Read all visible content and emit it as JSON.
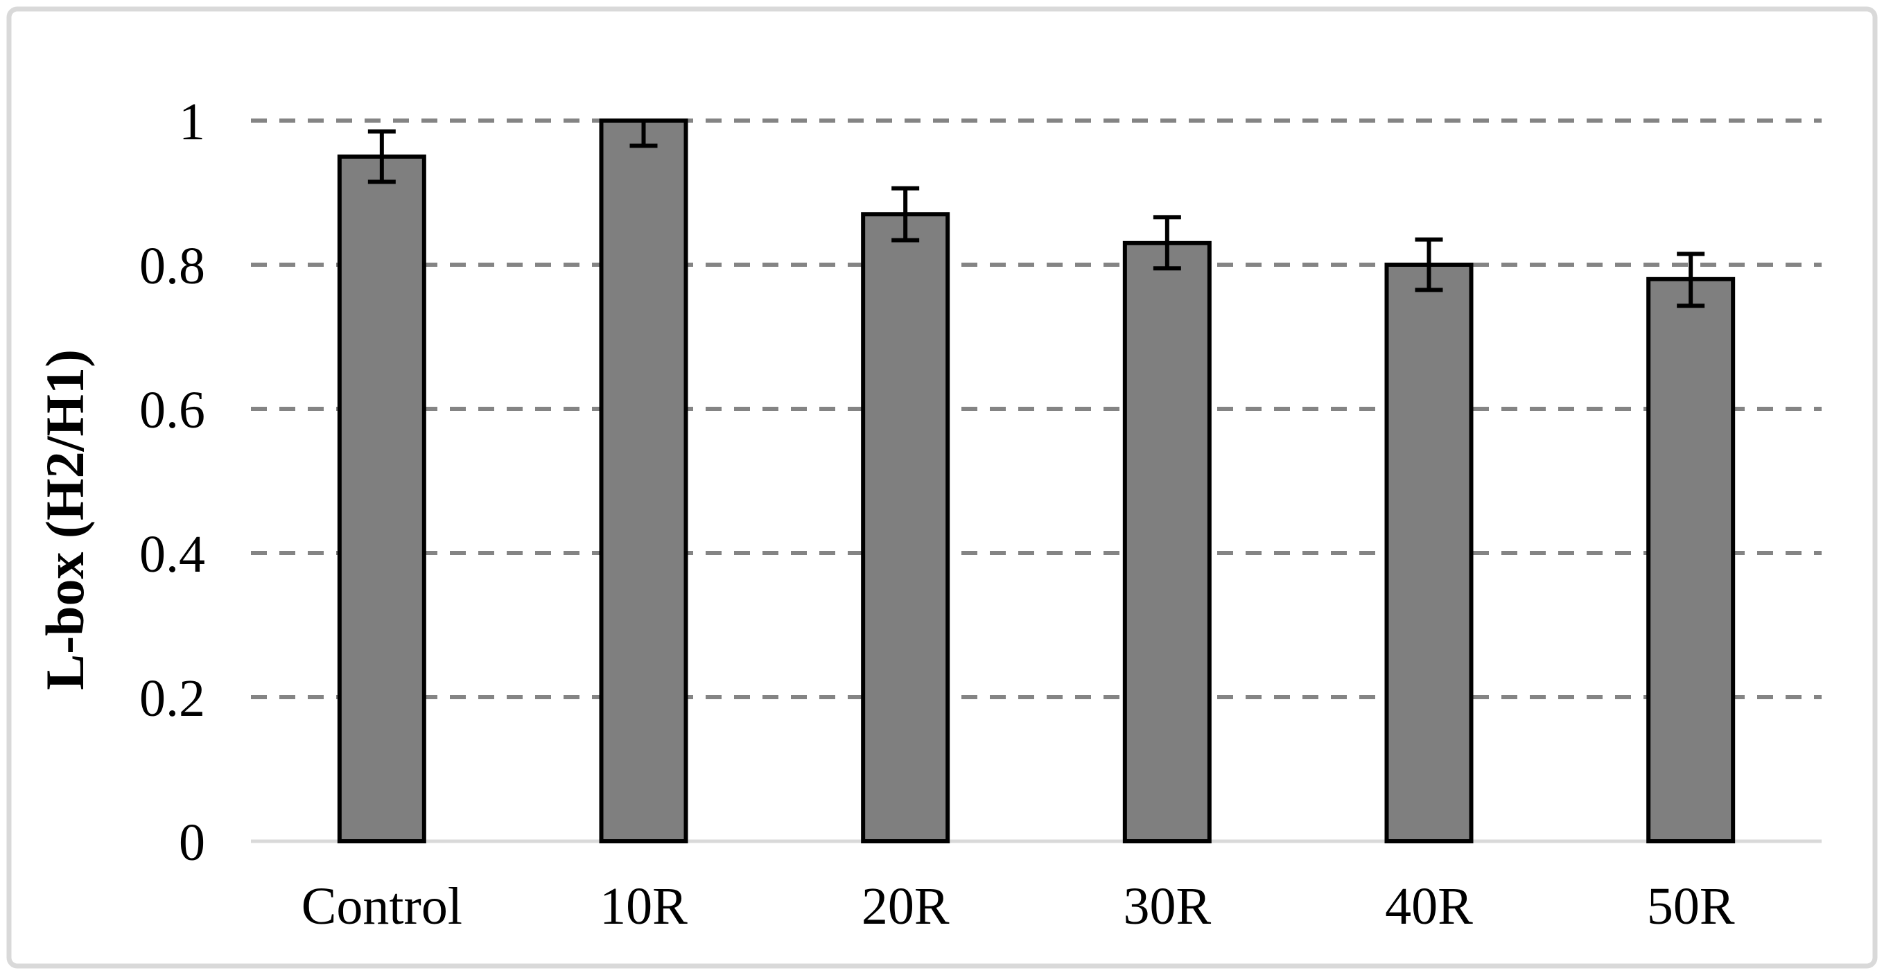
{
  "chart_data": {
    "type": "bar",
    "title": "",
    "xlabel": "",
    "ylabel": "L-box (H2/H1)",
    "categories": [
      "Control",
      "10R",
      "20R",
      "30R",
      "40R",
      "50R"
    ],
    "values": [
      0.95,
      1.0,
      0.87,
      0.83,
      0.8,
      0.78
    ],
    "error_up": [
      0.035,
      0,
      0.036,
      0.036,
      0.035,
      0.035
    ],
    "error_down": [
      0.035,
      0.035,
      0.036,
      0.035,
      0.035,
      0.037
    ],
    "ylim": [
      0,
      1.0
    ],
    "yticks": [
      0,
      0.2,
      0.4,
      0.6,
      0.8,
      1
    ],
    "ytick_labels": [
      "0",
      "0.2",
      "0.4",
      "0.6",
      "0.8",
      "1"
    ],
    "grid": "horizontal-dashed",
    "legend": "none",
    "bar_fill": "#7f7f7f",
    "bar_border": "#000000",
    "gridline_color": "#848484",
    "axis_line_color": "#d9d9d9",
    "frame_border_color": "#d9d9d9",
    "background": "#ffffff",
    "text_color": "#000000"
  }
}
